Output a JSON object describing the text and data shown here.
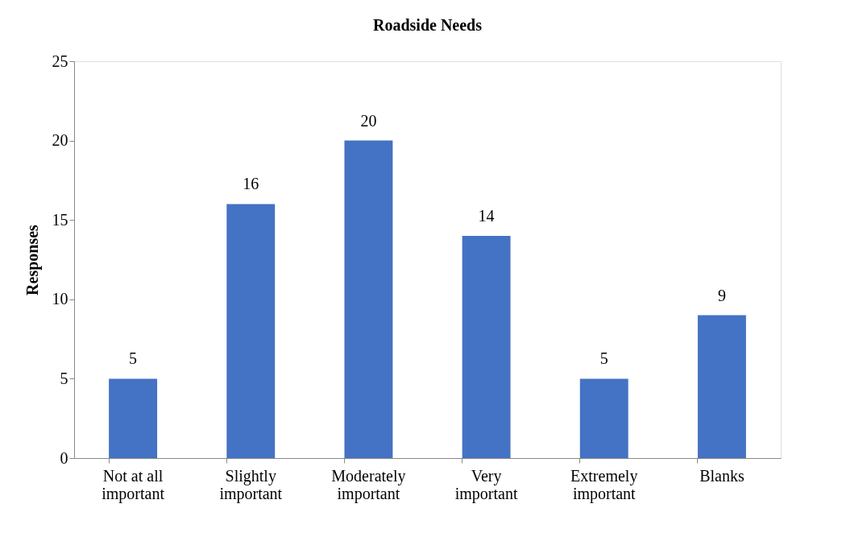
{
  "chart_data": {
    "type": "bar",
    "title": "Roadside Needs",
    "ylabel": "Responses",
    "categories": [
      "Not at all important",
      "Slightly important",
      "Moderately important",
      "Very important",
      "Extremely important",
      "Blanks"
    ],
    "values": [
      5,
      16,
      20,
      14,
      5,
      9
    ],
    "color": "#4472c4",
    "ylim": [
      0,
      25
    ],
    "yticks": [
      0,
      5,
      10,
      15,
      20,
      25
    ],
    "grid": false,
    "data_labels": true
  }
}
